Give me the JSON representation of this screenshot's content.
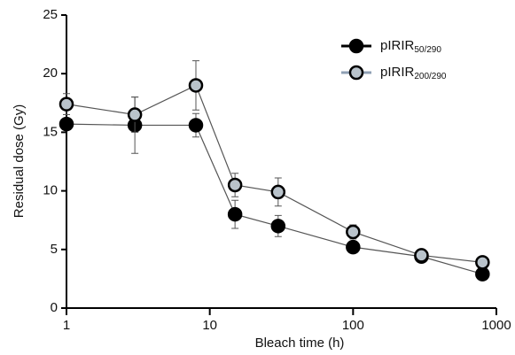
{
  "chart_data": {
    "type": "line",
    "xlabel": "Bleach time (h)",
    "ylabel": "Residual dose (Gy)",
    "x": [
      1,
      3,
      8,
      15,
      30,
      100,
      300,
      800
    ],
    "xscale": "log",
    "xlim": [
      1,
      1000
    ],
    "xticks": [
      1,
      10,
      100,
      1000
    ],
    "ylim": [
      0,
      25
    ],
    "yticks": [
      0,
      5,
      10,
      15,
      20,
      25
    ],
    "legend": "upper right",
    "series": [
      {
        "name": "pIRIR50/290",
        "color": "#000000",
        "values": [
          15.7,
          15.6,
          15.6,
          8.0,
          7.0,
          5.2,
          4.4,
          2.9
        ],
        "errors": [
          0.5,
          2.4,
          1.0,
          1.2,
          0.9,
          0.4,
          0.3,
          0.3
        ]
      },
      {
        "name": "pIRIR200/290",
        "color": "#b9c3cb",
        "values": [
          17.4,
          16.5,
          19.0,
          10.5,
          9.9,
          6.5,
          4.5,
          3.9
        ],
        "errors": [
          0.9,
          1.5,
          2.1,
          1.0,
          1.2,
          0.6,
          0.3,
          0.3
        ]
      }
    ]
  }
}
